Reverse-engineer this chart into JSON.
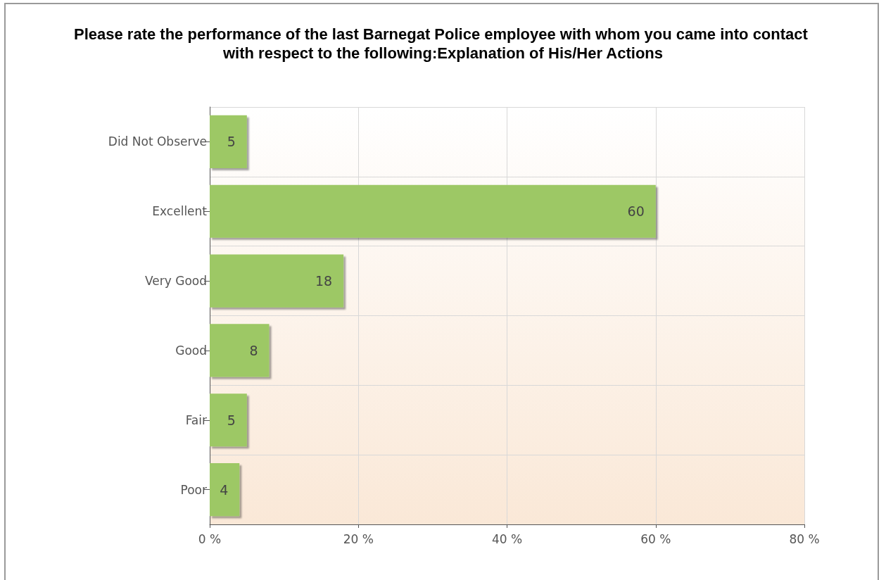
{
  "chart_data": {
    "type": "bar",
    "orientation": "horizontal",
    "title": "Please rate the performance of the last Barnegat Police employee with whom you came into contact with respect to the following:Explanation of His/Her Actions",
    "categories": [
      "Did Not Observe",
      "Excellent",
      "Very Good",
      "Good",
      "Fair",
      "Poor"
    ],
    "values": [
      5,
      60,
      18,
      8,
      5,
      4
    ],
    "color": "#9dc865",
    "xlim": [
      0,
      80
    ],
    "xticks": [
      {
        "value": 0,
        "label": "0 %"
      },
      {
        "value": 20,
        "label": "20 %"
      },
      {
        "value": 40,
        "label": "40 %"
      },
      {
        "value": 60,
        "label": "60 %"
      },
      {
        "value": 80,
        "label": "80 %"
      }
    ],
    "grid": true,
    "data_labels": true
  }
}
